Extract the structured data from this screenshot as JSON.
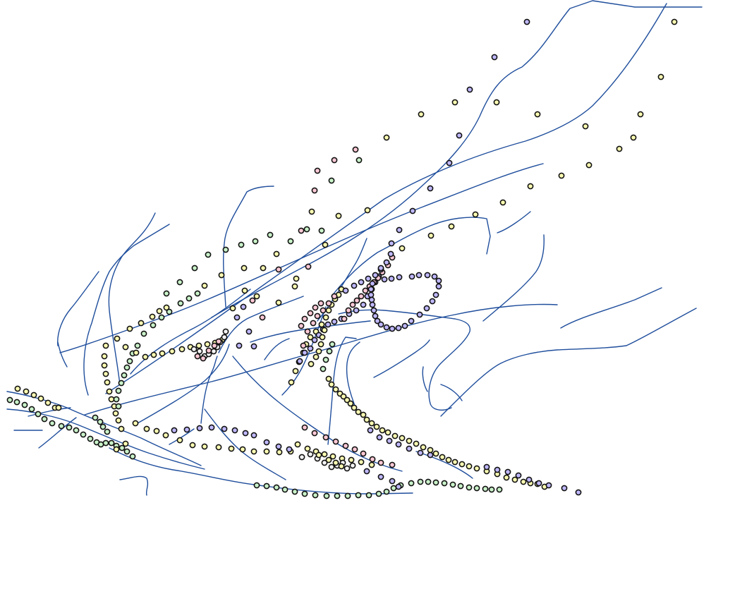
{
  "map": {
    "background_color": "#ffffff",
    "river_color": "#1f4e9c",
    "point_stroke_color": "#111111",
    "point_fill_colors": [
      "#ffffb3",
      "#c9f2c9",
      "#bfb8ff",
      "#ffc9d6",
      "#f3f3f3"
    ]
  }
}
